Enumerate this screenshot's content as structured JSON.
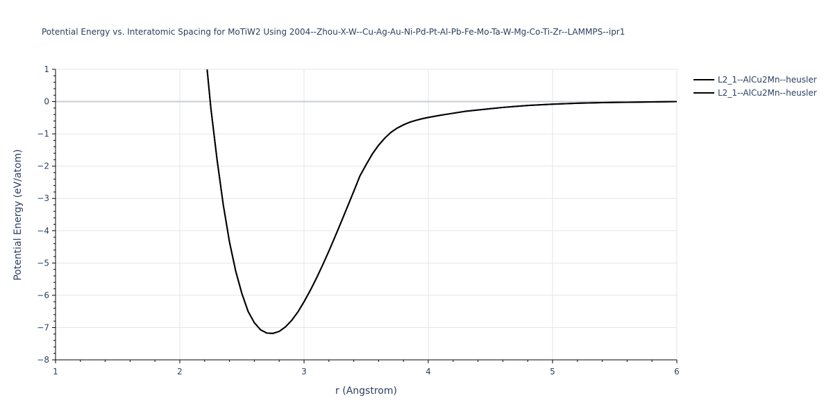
{
  "chart_data": {
    "type": "line",
    "title": "Potential Energy vs. Interatomic Spacing for MoTiW2 Using 2004--Zhou-X-W--Cu-Ag-Au-Ni-Pd-Pt-Al-Pb-Fe-Mo-Ta-W-Mg-Co-Ti-Zr--LAMMPS--ipr1",
    "xlabel": "r (Angstrom)",
    "ylabel": "Potential Energy (eV/atom)",
    "xlim": [
      1,
      6
    ],
    "ylim": [
      -8,
      1
    ],
    "x_ticks": [
      "1",
      "2",
      "3",
      "4",
      "5",
      "6"
    ],
    "y_ticks": [
      "1",
      "0",
      "−1",
      "−2",
      "−3",
      "−4",
      "−5",
      "−6",
      "−7",
      "−8"
    ],
    "grid": true,
    "legend_position": "top-right",
    "series": [
      {
        "name": "L2_1--AlCu2Mn--heusler",
        "color": "#000000",
        "x": [
          2.22,
          2.25,
          2.3,
          2.35,
          2.4,
          2.45,
          2.5,
          2.55,
          2.6,
          2.65,
          2.7,
          2.75,
          2.8,
          2.85,
          2.9,
          2.95,
          3.0,
          3.05,
          3.1,
          3.15,
          3.2,
          3.25,
          3.3,
          3.35,
          3.4,
          3.45,
          3.5,
          3.55,
          3.6,
          3.65,
          3.7,
          3.75,
          3.8,
          3.85,
          3.9,
          3.95,
          4.0,
          4.1,
          4.2,
          4.3,
          4.4,
          4.5,
          4.6,
          4.7,
          4.8,
          5.0,
          5.2,
          5.4,
          5.6,
          5.8,
          6.0
        ],
        "y": [
          1.0,
          -0.2,
          -1.8,
          -3.2,
          -4.35,
          -5.25,
          -5.95,
          -6.5,
          -6.85,
          -7.07,
          -7.17,
          -7.18,
          -7.12,
          -6.98,
          -6.78,
          -6.52,
          -6.2,
          -5.85,
          -5.47,
          -5.06,
          -4.63,
          -4.18,
          -3.72,
          -3.25,
          -2.78,
          -2.3,
          -1.95,
          -1.62,
          -1.35,
          -1.13,
          -0.95,
          -0.82,
          -0.72,
          -0.64,
          -0.58,
          -0.53,
          -0.49,
          -0.42,
          -0.36,
          -0.3,
          -0.26,
          -0.22,
          -0.18,
          -0.15,
          -0.12,
          -0.08,
          -0.05,
          -0.03,
          -0.02,
          -0.01,
          0.0
        ]
      },
      {
        "name": "L2_1--AlCu2Mn--heusler",
        "color": "#000000",
        "x": [
          2.22,
          2.25,
          2.3,
          2.35,
          2.4,
          2.45,
          2.5,
          2.55,
          2.6,
          2.65,
          2.7,
          2.75,
          2.8,
          2.85,
          2.9,
          2.95,
          3.0,
          3.05,
          3.1,
          3.15,
          3.2,
          3.25,
          3.3,
          3.35,
          3.4,
          3.45,
          3.5,
          3.55,
          3.6,
          3.65,
          3.7,
          3.75,
          3.8,
          3.85,
          3.9,
          3.95,
          4.0,
          4.1,
          4.2,
          4.3,
          4.4,
          4.5,
          4.6,
          4.7,
          4.8,
          5.0,
          5.2,
          5.4,
          5.6,
          5.8,
          6.0
        ],
        "y": [
          1.0,
          -0.2,
          -1.8,
          -3.2,
          -4.35,
          -5.25,
          -5.95,
          -6.5,
          -6.85,
          -7.07,
          -7.17,
          -7.18,
          -7.12,
          -6.98,
          -6.78,
          -6.52,
          -6.2,
          -5.85,
          -5.47,
          -5.06,
          -4.63,
          -4.18,
          -3.72,
          -3.25,
          -2.78,
          -2.3,
          -1.95,
          -1.62,
          -1.35,
          -1.13,
          -0.95,
          -0.82,
          -0.72,
          -0.64,
          -0.58,
          -0.53,
          -0.49,
          -0.42,
          -0.36,
          -0.3,
          -0.26,
          -0.22,
          -0.18,
          -0.15,
          -0.12,
          -0.08,
          -0.05,
          -0.03,
          -0.02,
          -0.01,
          0.0
        ]
      }
    ]
  }
}
